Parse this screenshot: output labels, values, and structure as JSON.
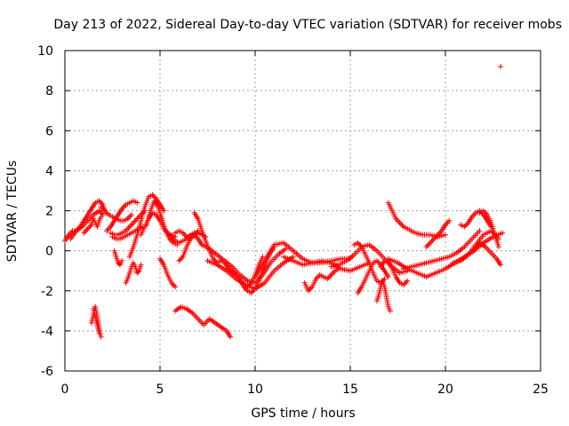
{
  "chart_data": {
    "type": "scatter",
    "title": "Day 213 of 2022, Sidereal Day-to-day VTEC variation (SDTVAR) for receiver mobs",
    "xlabel": "GPS time / hours",
    "ylabel": "SDTVAR / TECUs",
    "xlim": [
      0,
      25
    ],
    "ylim": [
      -6,
      10
    ],
    "xticks": [
      0,
      5,
      10,
      15,
      20,
      25
    ],
    "yticks": [
      -6,
      -4,
      -2,
      0,
      2,
      4,
      6,
      8,
      10
    ],
    "grid": true,
    "legend": "none",
    "colors": {
      "points": "#ff0000",
      "grid": "#a0a0a0",
      "axes": "#000000"
    },
    "marker": "+",
    "series": [
      {
        "name": "s1",
        "x": [
          0.0,
          0.2,
          0.4,
          0.6,
          0.8,
          1.0,
          1.2,
          1.4,
          1.6,
          1.8,
          2.0,
          2.1
        ],
        "y": [
          0.5,
          0.8,
          1.0,
          1.0,
          1.2,
          1.5,
          1.8,
          2.1,
          2.4,
          2.5,
          2.3,
          2.0
        ]
      },
      {
        "name": "s2",
        "x": [
          0.3,
          0.6,
          0.9,
          1.2,
          1.5,
          1.8,
          2.0
        ],
        "y": [
          0.6,
          1.0,
          1.2,
          1.5,
          1.8,
          2.0,
          1.8
        ]
      },
      {
        "name": "s3",
        "x": [
          1.0,
          1.2,
          1.4,
          1.5,
          1.6,
          1.7,
          1.8,
          1.9
        ],
        "y": [
          0.9,
          1.1,
          1.3,
          1.6,
          1.4,
          1.2,
          1.5,
          1.7
        ]
      },
      {
        "name": "s4",
        "x": [
          1.9,
          2.1,
          2.3,
          2.5,
          2.7,
          2.9,
          3.1,
          3.3,
          3.5
        ],
        "y": [
          2.2,
          2.0,
          1.8,
          1.7,
          1.6,
          1.5,
          1.5,
          1.6,
          1.8
        ]
      },
      {
        "name": "s5",
        "x": [
          2.2,
          2.4,
          2.6,
          2.8,
          3.0,
          3.2,
          3.4,
          3.6,
          3.8
        ],
        "y": [
          1.0,
          1.2,
          1.5,
          1.8,
          2.1,
          2.3,
          2.4,
          2.5,
          2.4
        ]
      },
      {
        "name": "s6",
        "x": [
          2.4,
          2.6,
          2.8,
          3.0,
          3.2,
          3.4,
          3.6,
          3.8,
          4.0,
          4.2
        ],
        "y": [
          0.9,
          0.8,
          0.8,
          0.9,
          1.0,
          1.2,
          1.4,
          1.6,
          1.8,
          2.0
        ]
      },
      {
        "name": "s7",
        "x": [
          2.5,
          2.7,
          2.9,
          3.1,
          3.3,
          3.5,
          3.7,
          3.9,
          4.1
        ],
        "y": [
          0.7,
          0.6,
          0.6,
          0.7,
          0.8,
          0.9,
          1.0,
          1.1,
          1.2
        ]
      },
      {
        "name": "s8",
        "x": [
          2.6,
          2.7,
          2.8,
          2.9,
          3.0
        ],
        "y": [
          0.0,
          -0.3,
          -0.6,
          -0.7,
          -0.5
        ]
      },
      {
        "name": "s9",
        "x": [
          3.2,
          3.3,
          3.4,
          3.5,
          3.6,
          3.7,
          3.8,
          3.9,
          4.0
        ],
        "y": [
          -1.6,
          -1.4,
          -1.1,
          -0.8,
          -0.6,
          -0.8,
          -1.1,
          -1.0,
          -0.7
        ]
      },
      {
        "name": "s10",
        "x": [
          3.4,
          3.6,
          3.8,
          4.0,
          4.2,
          4.4,
          4.6,
          4.8,
          5.0,
          5.2
        ],
        "y": [
          -0.3,
          0.2,
          0.8,
          1.5,
          2.2,
          2.7,
          2.8,
          2.6,
          2.3,
          2.0
        ]
      },
      {
        "name": "s11",
        "x": [
          4.0,
          4.2,
          4.4,
          4.6,
          4.8,
          5.0,
          5.2,
          5.4,
          5.6,
          5.8
        ],
        "y": [
          0.8,
          1.2,
          1.6,
          1.9,
          1.8,
          1.5,
          1.1,
          0.9,
          0.8,
          0.7
        ]
      },
      {
        "name": "s12",
        "x": [
          4.3,
          4.5,
          4.7,
          4.9,
          5.1,
          5.3,
          5.5,
          5.7,
          5.9
        ],
        "y": [
          1.3,
          2.0,
          2.5,
          2.2,
          1.6,
          1.0,
          0.6,
          0.4,
          0.3
        ]
      },
      {
        "name": "s13",
        "x": [
          5.0,
          5.2,
          5.4,
          5.6,
          5.8
        ],
        "y": [
          -0.4,
          -0.7,
          -1.2,
          -1.6,
          -1.8
        ]
      },
      {
        "name": "s14",
        "x": [
          5.4,
          5.6,
          5.8,
          6.0,
          6.2,
          6.4,
          6.6,
          6.8,
          7.0,
          7.2,
          7.4
        ],
        "y": [
          0.8,
          0.7,
          0.5,
          0.4,
          0.5,
          0.6,
          0.8,
          0.9,
          0.9,
          0.8,
          0.7
        ]
      },
      {
        "name": "s15",
        "x": [
          5.8,
          6.0,
          6.2,
          6.4,
          6.6,
          6.8,
          7.0
        ],
        "y": [
          0.9,
          1.0,
          0.9,
          0.7,
          0.6,
          0.8,
          1.0
        ]
      },
      {
        "name": "s16",
        "x": [
          6.0,
          6.2,
          6.4,
          6.6,
          6.8,
          7.0,
          7.2
        ],
        "y": [
          -0.5,
          -0.3,
          0.2,
          0.6,
          0.8,
          0.6,
          0.3
        ]
      },
      {
        "name": "s17",
        "x": [
          6.8,
          7.0,
          7.2,
          7.4,
          7.6,
          7.8,
          8.0,
          8.2,
          8.4,
          8.6,
          8.8,
          9.0
        ],
        "y": [
          1.9,
          1.6,
          1.0,
          0.5,
          0.0,
          -0.4,
          -0.6,
          -0.5,
          -0.6,
          -0.9,
          -1.1,
          -1.2
        ]
      },
      {
        "name": "s18",
        "x": [
          7.2,
          7.6,
          8.0,
          8.4,
          8.8,
          9.2,
          9.6,
          10.0,
          10.4,
          10.8,
          11.2,
          11.6
        ],
        "y": [
          0.3,
          0.1,
          -0.2,
          -0.5,
          -0.8,
          -1.2,
          -1.5,
          -1.6,
          -1.2,
          -0.6,
          -0.2,
          0.1
        ]
      },
      {
        "name": "s19",
        "x": [
          7.5,
          8.0,
          8.5,
          9.0,
          9.5,
          10.0,
          10.5,
          11.0,
          11.5,
          12.0
        ],
        "y": [
          -0.5,
          -0.7,
          -1.0,
          -1.4,
          -1.7,
          -1.9,
          -1.6,
          -1.0,
          -0.6,
          -0.3
        ]
      },
      {
        "name": "s20",
        "x": [
          8.8,
          9.0,
          9.2,
          9.4,
          9.6,
          9.8,
          10.0,
          10.2,
          10.4,
          10.6,
          10.8,
          11.0
        ],
        "y": [
          -1.0,
          -1.2,
          -1.4,
          -1.8,
          -2.0,
          -2.1,
          -1.9,
          -1.5,
          -1.0,
          -0.5,
          -0.1,
          0.2
        ]
      },
      {
        "name": "s21",
        "x": [
          9.2,
          9.4,
          9.6,
          9.8,
          10.0,
          10.2,
          10.4
        ],
        "y": [
          -1.5,
          -1.7,
          -1.8,
          -1.6,
          -1.2,
          -0.7,
          -0.3
        ]
      },
      {
        "name": "s22",
        "x": [
          10.0,
          10.5,
          11.0,
          11.5,
          12.0,
          12.5,
          13.0,
          13.5,
          14.0,
          14.5,
          15.0
        ],
        "y": [
          -1.3,
          -0.5,
          0.3,
          0.4,
          0.0,
          -0.4,
          -0.6,
          -0.6,
          -0.5,
          -0.4,
          -0.4
        ]
      },
      {
        "name": "s23",
        "x": [
          11.5,
          12.0,
          12.5,
          13.0,
          13.5,
          14.0,
          14.5,
          15.0,
          15.5,
          16.0
        ],
        "y": [
          -0.3,
          -0.5,
          -0.7,
          -0.6,
          -0.5,
          -0.6,
          -0.9,
          -1.0,
          -0.8,
          -0.6
        ]
      },
      {
        "name": "s24",
        "x": [
          12.6,
          12.8,
          13.0,
          13.2,
          13.4,
          13.6,
          13.8,
          14.0,
          14.2,
          14.4
        ],
        "y": [
          -1.6,
          -2.0,
          -1.8,
          -1.4,
          -1.2,
          -1.3,
          -1.4,
          -1.2,
          -1.0,
          -0.9
        ]
      },
      {
        "name": "s25",
        "x": [
          14.0,
          14.4,
          14.8,
          15.2,
          15.6,
          16.0,
          16.4,
          16.8,
          17.2,
          17.6,
          18.0
        ],
        "y": [
          -0.8,
          -0.7,
          -0.5,
          -0.2,
          0.2,
          0.3,
          0.0,
          -0.4,
          -0.8,
          -1.1,
          -1.0
        ]
      },
      {
        "name": "s26",
        "x": [
          15.2,
          15.4,
          15.6,
          15.8,
          16.0,
          16.2,
          16.4,
          16.6,
          16.8
        ],
        "y": [
          0.3,
          0.4,
          0.2,
          -0.2,
          -0.6,
          -1.1,
          -1.5,
          -1.6,
          -1.4
        ]
      },
      {
        "name": "s27",
        "x": [
          15.4,
          15.6,
          15.8,
          16.0,
          16.2,
          16.4,
          16.6,
          16.8,
          17.0
        ],
        "y": [
          -2.1,
          -1.8,
          -1.4,
          -1.0,
          -0.6,
          -0.5,
          -0.7,
          -1.0,
          -1.3
        ]
      },
      {
        "name": "s28",
        "x": [
          16.4,
          16.5,
          16.6,
          16.7,
          16.8,
          16.9,
          17.0,
          17.1
        ],
        "y": [
          -2.5,
          -2.2,
          -1.8,
          -1.5,
          -1.8,
          -2.3,
          -2.8,
          -3.0
        ]
      },
      {
        "name": "s29",
        "x": [
          16.6,
          16.8,
          17.0,
          17.2,
          17.4,
          17.6,
          17.8,
          18.0
        ],
        "y": [
          -0.8,
          -0.5,
          -0.5,
          -0.9,
          -1.3,
          -1.6,
          -1.7,
          -1.5
        ]
      },
      {
        "name": "s30",
        "x": [
          17.0,
          17.2,
          17.4,
          17.6,
          17.8,
          18.0,
          18.4,
          18.8,
          19.2,
          19.6,
          20.0
        ],
        "y": [
          2.4,
          2.0,
          1.6,
          1.4,
          1.2,
          1.1,
          0.9,
          0.8,
          0.8,
          0.7,
          0.8
        ]
      },
      {
        "name": "s31",
        "x": [
          19.0,
          19.2,
          19.4,
          19.6,
          19.8,
          20.0,
          20.2
        ],
        "y": [
          0.2,
          0.4,
          0.6,
          0.8,
          1.0,
          1.3,
          1.5
        ]
      },
      {
        "name": "s32",
        "x": [
          17.0,
          17.5,
          18.0,
          18.5,
          19.0,
          19.5,
          20.0,
          20.5,
          21.0,
          21.5,
          22.0,
          22.5,
          23.0
        ],
        "y": [
          -0.4,
          -0.6,
          -0.9,
          -1.1,
          -1.3,
          -1.1,
          -0.9,
          -0.6,
          -0.3,
          0.0,
          0.4,
          0.7,
          0.9
        ]
      },
      {
        "name": "s33",
        "x": [
          17.8,
          18.2,
          18.6,
          19.0,
          19.4,
          19.8,
          20.2,
          20.6,
          21.0,
          21.4,
          21.8
        ],
        "y": [
          -0.9,
          -0.8,
          -0.7,
          -0.6,
          -0.5,
          -0.4,
          -0.3,
          -0.1,
          0.2,
          0.6,
          1.0
        ]
      },
      {
        "name": "s34",
        "x": [
          20.4,
          20.8,
          21.2,
          21.6,
          22.0,
          22.4,
          22.8
        ],
        "y": [
          -0.6,
          -0.5,
          -0.2,
          0.3,
          0.8,
          1.0,
          0.6
        ]
      },
      {
        "name": "s35",
        "x": [
          20.8,
          21.0,
          21.2,
          21.4,
          21.6,
          21.8,
          22.0,
          22.2,
          22.4
        ],
        "y": [
          1.3,
          1.2,
          1.4,
          1.7,
          1.9,
          2.0,
          1.8,
          1.5,
          1.2
        ]
      },
      {
        "name": "s36",
        "x": [
          21.5,
          21.8,
          22.1,
          22.4,
          22.7,
          22.9
        ],
        "y": [
          0.0,
          0.4,
          0.2,
          -0.1,
          -0.4,
          -0.7
        ]
      },
      {
        "name": "s37",
        "x": [
          21.8,
          22.0,
          22.2,
          22.4,
          22.6,
          22.8
        ],
        "y": [
          1.9,
          2.0,
          1.8,
          1.4,
          0.8,
          0.2
        ]
      },
      {
        "name": "s38",
        "x": [
          1.4,
          1.5,
          1.6,
          1.7,
          1.8,
          1.9
        ],
        "y": [
          -3.6,
          -3.2,
          -2.8,
          -3.3,
          -3.9,
          -4.3
        ]
      },
      {
        "name": "s39",
        "x": [
          1.5,
          1.6,
          1.7,
          1.8
        ],
        "y": [
          -2.9,
          -3.3,
          -3.7,
          -4.1
        ]
      },
      {
        "name": "s40",
        "x": [
          5.8,
          6.1,
          6.4,
          6.7,
          7.0,
          7.3,
          7.6,
          7.9,
          8.2,
          8.5,
          8.7
        ],
        "y": [
          -3.0,
          -2.8,
          -2.9,
          -3.1,
          -3.4,
          -3.7,
          -3.4,
          -3.6,
          -3.8,
          -4.0,
          -4.3
        ]
      },
      {
        "name": "s41",
        "x": [
          22.9
        ],
        "y": [
          9.2
        ]
      }
    ]
  }
}
